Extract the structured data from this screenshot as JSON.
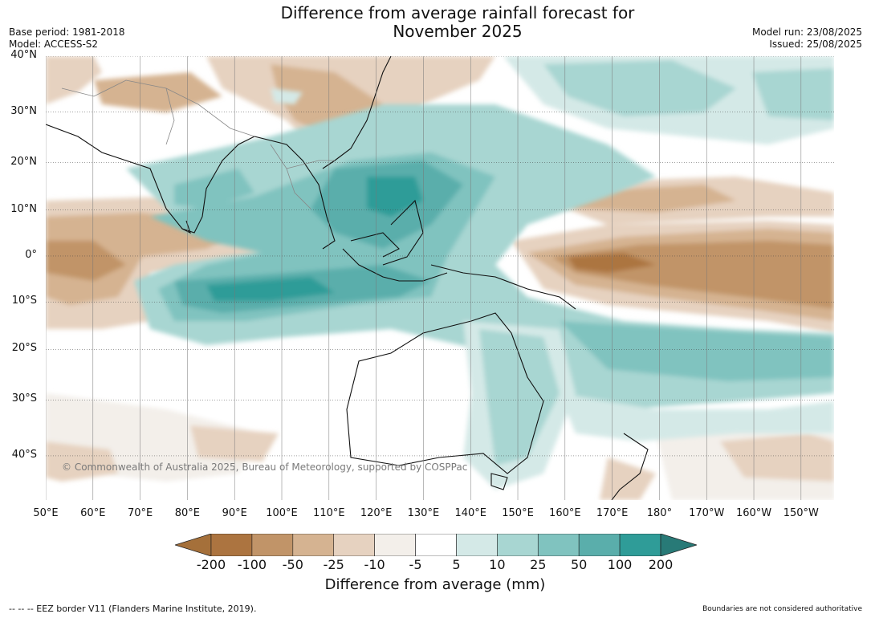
{
  "header": {
    "title_line1": "Difference from average rainfall forecast for",
    "title_line2": "November 2025",
    "base_period": "Base period: 1981-2018",
    "model": "Model: ACCESS-S2",
    "model_run": "Model run: 23/08/2025",
    "issued": "Issued: 25/08/2025"
  },
  "map": {
    "copyright": "© Commonwealth of Australia 2025, Bureau of Meteorology, supported by COSPPac",
    "lat_labels": [
      "40°N",
      "30°N",
      "20°N",
      "10°N",
      "0°",
      "10°S",
      "20°S",
      "30°S",
      "40°S"
    ],
    "lon_labels": [
      "50°E",
      "60°E",
      "70°E",
      "80°E",
      "90°E",
      "100°E",
      "110°E",
      "120°E",
      "130°E",
      "140°E",
      "150°E",
      "160°E",
      "170°E",
      "180°",
      "170°W",
      "160°W",
      "150°W"
    ],
    "extent": {
      "lon_min": 50,
      "lon_max": 217,
      "lat_min": -47,
      "lat_max": 40
    }
  },
  "colorbar": {
    "title": "Difference from average (mm)",
    "ticks": [
      "-200",
      "-100",
      "-50",
      "-25",
      "-10",
      "-5",
      "5",
      "10",
      "25",
      "50",
      "100",
      "200"
    ],
    "colors": [
      "#a5703a",
      "#ac7440",
      "#c19468",
      "#d5b391",
      "#e6d2c0",
      "#f3efea",
      "#ffffff",
      "#d4e9e7",
      "#a8d6d2",
      "#80c3bf",
      "#5aaeab",
      "#2f9c98",
      "#287a77"
    ]
  },
  "footer": {
    "eez_note": "--  --  -- EEZ border V11 (Flanders Marine Institute, 2019).",
    "boundaries_note": "Boundaries are not considered authoritative"
  }
}
